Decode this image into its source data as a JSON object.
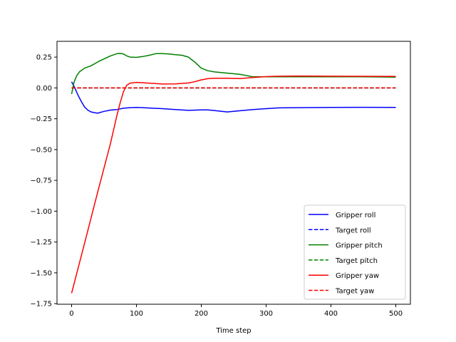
{
  "chart_data": {
    "type": "line",
    "xlabel": "Time step",
    "ylabel": "",
    "title": "",
    "xlim": [
      -22.5,
      522.5
    ],
    "ylim": [
      -1.755,
      0.378
    ],
    "x_ticks": [
      0,
      100,
      200,
      300,
      400,
      500
    ],
    "y_ticks": [
      0.25,
      0.0,
      -0.25,
      -0.5,
      -0.75,
      -1.0,
      -1.25,
      -1.5,
      -1.75
    ],
    "x_tick_labels": [
      "0",
      "100",
      "200",
      "300",
      "400",
      "500"
    ],
    "y_tick_labels": [
      "0.25",
      "0.00",
      "−0.25",
      "−0.50",
      "−0.75",
      "−1.00",
      "−1.25",
      "−1.50",
      "−1.75"
    ],
    "grid": false,
    "legend_position": "lower-right",
    "series": [
      {
        "name": "Gripper roll",
        "color": "#0000ff",
        "dash": "solid",
        "points": [
          [
            0,
            0.05
          ],
          [
            5,
            0.0
          ],
          [
            10,
            -0.06
          ],
          [
            15,
            -0.11
          ],
          [
            20,
            -0.155
          ],
          [
            25,
            -0.18
          ],
          [
            30,
            -0.195
          ],
          [
            35,
            -0.2
          ],
          [
            40,
            -0.205
          ],
          [
            50,
            -0.19
          ],
          [
            60,
            -0.18
          ],
          [
            70,
            -0.175
          ],
          [
            80,
            -0.165
          ],
          [
            90,
            -0.16
          ],
          [
            100,
            -0.158
          ],
          [
            110,
            -0.16
          ],
          [
            120,
            -0.163
          ],
          [
            140,
            -0.168
          ],
          [
            160,
            -0.175
          ],
          [
            180,
            -0.182
          ],
          [
            200,
            -0.178
          ],
          [
            210,
            -0.178
          ],
          [
            220,
            -0.183
          ],
          [
            240,
            -0.195
          ],
          [
            260,
            -0.185
          ],
          [
            280,
            -0.175
          ],
          [
            300,
            -0.168
          ],
          [
            320,
            -0.162
          ],
          [
            350,
            -0.16
          ],
          [
            400,
            -0.158
          ],
          [
            450,
            -0.157
          ],
          [
            500,
            -0.158
          ]
        ]
      },
      {
        "name": "Target roll",
        "color": "#0000ff",
        "dash": "dashed",
        "points": [
          [
            0,
            0
          ],
          [
            500,
            0
          ]
        ]
      },
      {
        "name": "Gripper pitch",
        "color": "#008000",
        "dash": "solid",
        "points": [
          [
            0,
            -0.05
          ],
          [
            4,
            0.05
          ],
          [
            8,
            0.1
          ],
          [
            12,
            0.13
          ],
          [
            20,
            0.16
          ],
          [
            30,
            0.18
          ],
          [
            40,
            0.21
          ],
          [
            50,
            0.235
          ],
          [
            60,
            0.26
          ],
          [
            70,
            0.278
          ],
          [
            75,
            0.28
          ],
          [
            80,
            0.275
          ],
          [
            85,
            0.26
          ],
          [
            90,
            0.25
          ],
          [
            100,
            0.248
          ],
          [
            110,
            0.255
          ],
          [
            120,
            0.265
          ],
          [
            130,
            0.278
          ],
          [
            140,
            0.278
          ],
          [
            150,
            0.275
          ],
          [
            160,
            0.27
          ],
          [
            170,
            0.265
          ],
          [
            180,
            0.25
          ],
          [
            190,
            0.21
          ],
          [
            200,
            0.16
          ],
          [
            210,
            0.14
          ],
          [
            220,
            0.13
          ],
          [
            240,
            0.12
          ],
          [
            260,
            0.11
          ],
          [
            280,
            0.09
          ],
          [
            300,
            0.09
          ],
          [
            350,
            0.09
          ],
          [
            400,
            0.09
          ],
          [
            450,
            0.09
          ],
          [
            500,
            0.088
          ]
        ]
      },
      {
        "name": "Target pitch",
        "color": "#008000",
        "dash": "dashed",
        "points": [
          [
            0,
            0
          ],
          [
            500,
            0
          ]
        ]
      },
      {
        "name": "Gripper yaw",
        "color": "#ff0000",
        "dash": "solid",
        "points": [
          [
            0,
            -1.665
          ],
          [
            20,
            -1.26
          ],
          [
            40,
            -0.85
          ],
          [
            60,
            -0.45
          ],
          [
            70,
            -0.22
          ],
          [
            75,
            -0.12
          ],
          [
            80,
            -0.03
          ],
          [
            85,
            0.02
          ],
          [
            90,
            0.038
          ],
          [
            100,
            0.045
          ],
          [
            110,
            0.042
          ],
          [
            120,
            0.038
          ],
          [
            140,
            0.032
          ],
          [
            160,
            0.033
          ],
          [
            180,
            0.04
          ],
          [
            190,
            0.05
          ],
          [
            200,
            0.065
          ],
          [
            210,
            0.075
          ],
          [
            220,
            0.078
          ],
          [
            240,
            0.078
          ],
          [
            260,
            0.076
          ],
          [
            280,
            0.085
          ],
          [
            300,
            0.092
          ],
          [
            320,
            0.095
          ],
          [
            350,
            0.096
          ],
          [
            400,
            0.095
          ],
          [
            450,
            0.094
          ],
          [
            500,
            0.093
          ]
        ]
      },
      {
        "name": "Target yaw",
        "color": "#ff0000",
        "dash": "dashed",
        "points": [
          [
            0,
            0
          ],
          [
            500,
            0
          ]
        ]
      }
    ]
  }
}
